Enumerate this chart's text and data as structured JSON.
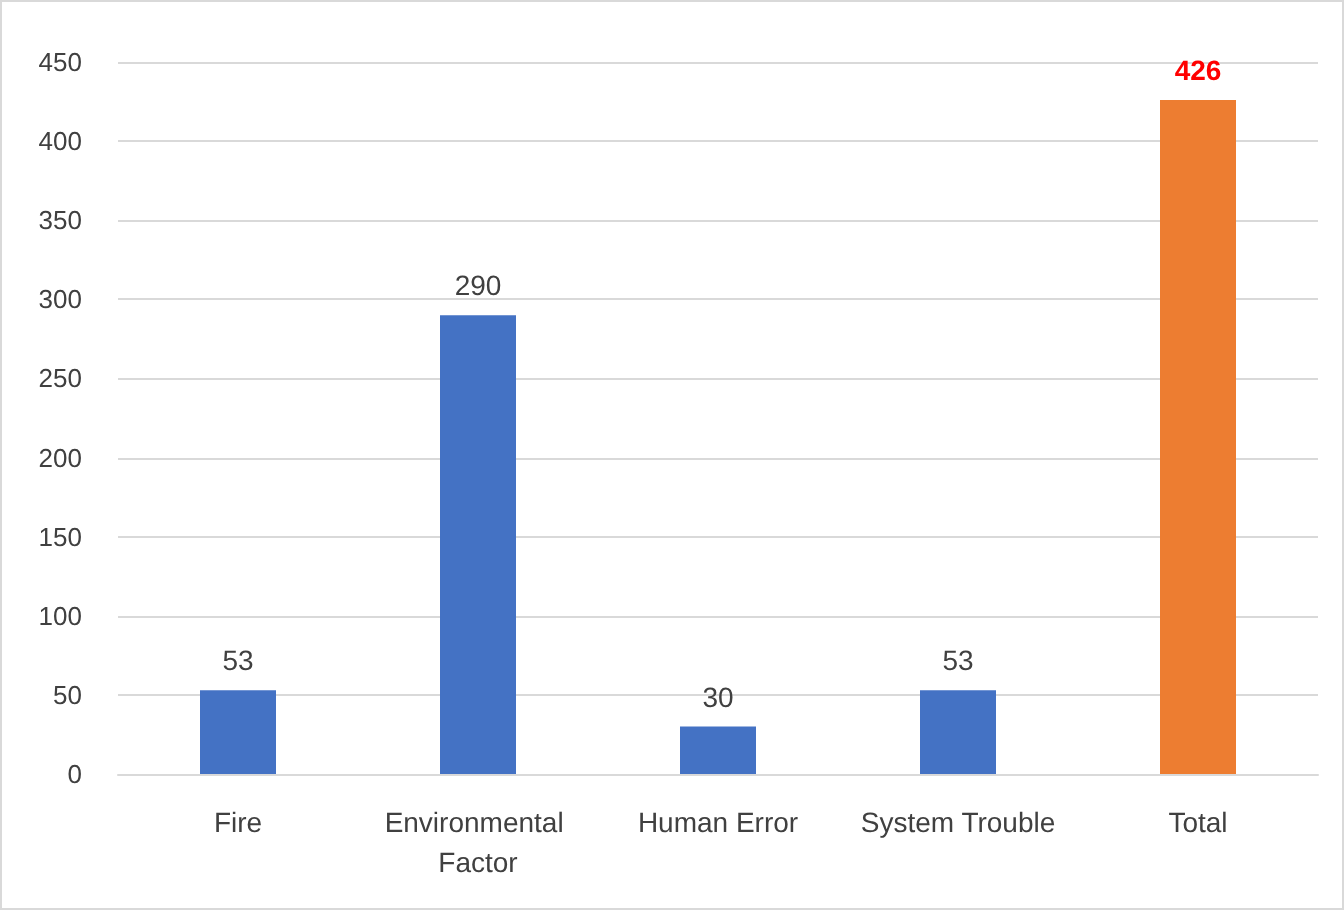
{
  "chart_data": {
    "type": "bar",
    "categories": [
      "Fire",
      "Environmental Factor",
      "Human Error",
      "System Trouble",
      "Total"
    ],
    "values": [
      53,
      290,
      30,
      53,
      426
    ],
    "colors": [
      "#4472c4",
      "#4472c4",
      "#4472c4",
      "#4472c4",
      "#ed7d31"
    ],
    "ylim": [
      0,
      450
    ],
    "yticks": [
      0,
      50,
      100,
      150,
      200,
      250,
      300,
      350,
      400,
      450
    ],
    "grid": "y",
    "data_labels": true
  }
}
